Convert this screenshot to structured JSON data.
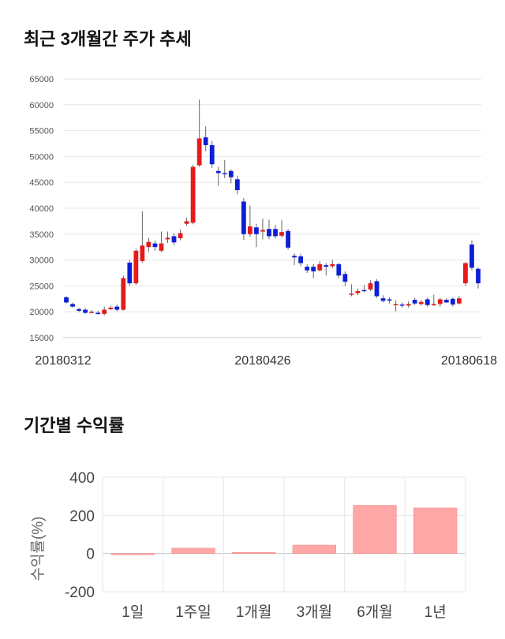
{
  "sections": {
    "price_title": "최근 3개월간 주가 추세",
    "returns_title": "기간별 수익률"
  },
  "colors": {
    "up": "#e51b1b",
    "down": "#0c1fd6",
    "bar": "#ffa7a7",
    "grid": "#e6e6e6"
  },
  "chart_data": [
    {
      "type": "candlestick",
      "ylim": [
        15000,
        65000
      ],
      "y_ticks": [
        15000,
        20000,
        25000,
        30000,
        35000,
        40000,
        45000,
        50000,
        55000,
        60000,
        65000
      ],
      "x_tick_labels": [
        {
          "label": "20180312",
          "index": 0
        },
        {
          "label": "20180426",
          "index": 31
        },
        {
          "label": "20180618",
          "index": 65
        }
      ],
      "candles": [
        [
          22800,
          21800,
          23000,
          21600
        ],
        [
          21500,
          21000,
          21800,
          20800
        ],
        [
          20500,
          20200,
          20800,
          19900
        ],
        [
          20400,
          19800,
          20700,
          19600
        ],
        [
          19900,
          20000,
          20300,
          19700
        ],
        [
          19800,
          19700,
          20200,
          19400
        ],
        [
          19600,
          20400,
          21000,
          19300
        ],
        [
          20500,
          20800,
          21200,
          20300
        ],
        [
          21000,
          20400,
          21400,
          20100
        ],
        [
          20400,
          26500,
          27000,
          20200
        ],
        [
          29500,
          25500,
          30000,
          25000
        ],
        [
          25500,
          31800,
          32200,
          25200
        ],
        [
          29800,
          32800,
          39400,
          29500
        ],
        [
          32500,
          33500,
          34300,
          31500
        ],
        [
          33200,
          32500,
          33800,
          31800
        ],
        [
          31800,
          33200,
          35500,
          31500
        ],
        [
          34000,
          34300,
          35500,
          33300
        ],
        [
          34600,
          33400,
          35200,
          32900
        ],
        [
          34200,
          35200,
          35900,
          33800
        ],
        [
          37000,
          37500,
          38200,
          36600
        ],
        [
          37200,
          48000,
          48400,
          36900
        ],
        [
          48300,
          53500,
          61000,
          48000
        ],
        [
          53700,
          52200,
          55800,
          51000
        ],
        [
          52200,
          48500,
          53000,
          47800
        ],
        [
          47200,
          46800,
          48000,
          44300
        ],
        [
          46800,
          46700,
          49300,
          45800
        ],
        [
          47200,
          46000,
          47500,
          44800
        ],
        [
          45600,
          43500,
          46300,
          42700
        ],
        [
          41300,
          35000,
          42000,
          33900
        ],
        [
          35000,
          36500,
          40500,
          34500
        ],
        [
          36300,
          35000,
          37000,
          32500
        ],
        [
          35500,
          35800,
          38000,
          34000
        ],
        [
          36000,
          34600,
          37800,
          34000
        ],
        [
          36000,
          34600,
          36800,
          34100
        ],
        [
          34700,
          35400,
          37700,
          34300
        ],
        [
          35600,
          32400,
          36000,
          32000
        ],
        [
          30800,
          30500,
          31300,
          29000
        ],
        [
          30700,
          29400,
          31200,
          28800
        ],
        [
          28700,
          28000,
          29200,
          27500
        ],
        [
          28700,
          27800,
          29200,
          26500
        ],
        [
          28000,
          29200,
          29800,
          27800
        ],
        [
          29000,
          28700,
          29400,
          27000
        ],
        [
          28800,
          29200,
          30000,
          28400
        ],
        [
          29200,
          27000,
          29400,
          26500
        ],
        [
          27300,
          25800,
          27800,
          25000
        ],
        [
          23300,
          23500,
          25300,
          23000
        ],
        [
          23600,
          24000,
          24500,
          23200
        ],
        [
          24200,
          24000,
          25200,
          23800
        ],
        [
          24300,
          25500,
          26100,
          24000
        ],
        [
          25900,
          23000,
          26300,
          22700
        ],
        [
          22600,
          22100,
          23200,
          21800
        ],
        [
          22400,
          22200,
          22800,
          21600
        ],
        [
          21400,
          21500,
          22200,
          20100
        ],
        [
          21400,
          21200,
          21800,
          20800
        ],
        [
          21200,
          21500,
          22000,
          20800
        ],
        [
          22300,
          21600,
          22700,
          21300
        ],
        [
          21500,
          21900,
          22300,
          21200
        ],
        [
          22400,
          21300,
          22800,
          21000
        ],
        [
          21300,
          21500,
          23300,
          21100
        ],
        [
          21500,
          22400,
          22700,
          21000
        ],
        [
          22300,
          21800,
          22600,
          21700
        ],
        [
          22500,
          21400,
          22800,
          21000
        ],
        [
          21600,
          22600,
          23000,
          21400
        ],
        [
          25500,
          29400,
          29600,
          25000
        ],
        [
          33000,
          28500,
          33800,
          28000
        ],
        [
          28300,
          25500,
          28600,
          24500
        ]
      ]
    },
    {
      "type": "bar",
      "ylabel": "수익률(%)",
      "ylim": [
        -200,
        400
      ],
      "y_ticks": [
        -200,
        0,
        200,
        400
      ],
      "categories": [
        "1일",
        "1주일",
        "1개월",
        "3개월",
        "6개월",
        "1년"
      ],
      "values": [
        -1,
        28,
        6,
        44,
        253,
        239
      ]
    }
  ]
}
